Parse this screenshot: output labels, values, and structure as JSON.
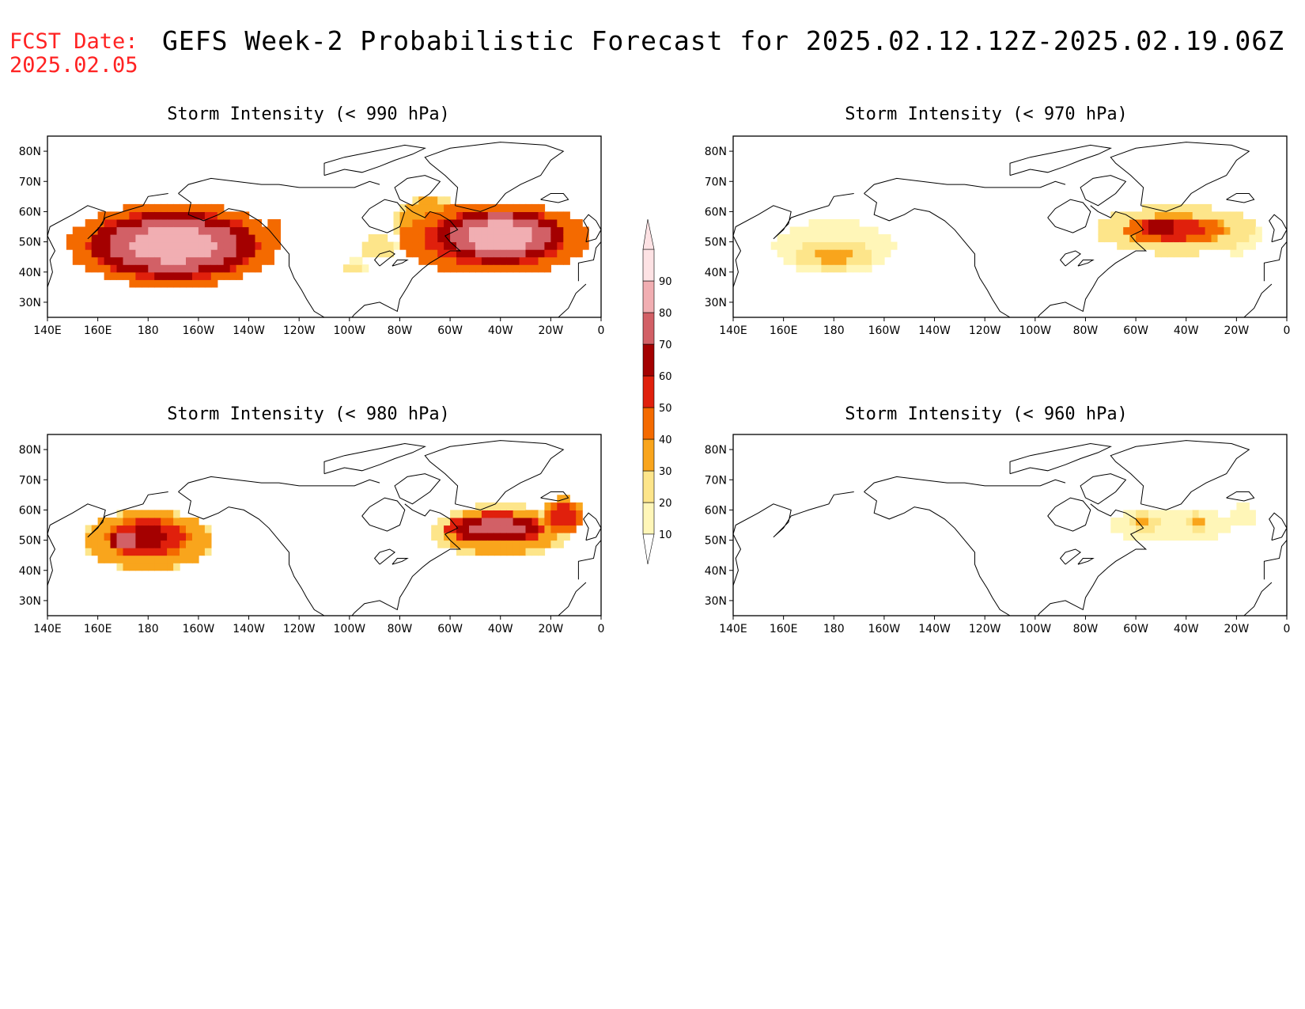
{
  "header": {
    "fcst_label": "FCST Date:",
    "fcst_date": "2025.02.05",
    "title": "GEFS Week-2 Probabilistic Forecast for 2025.02.12.12Z-2025.02.19.06Z"
  },
  "axes": {
    "lon_labels": [
      "140E",
      "160E",
      "180",
      "160W",
      "140W",
      "120W",
      "100W",
      "80W",
      "60W",
      "40W",
      "20W",
      "0"
    ],
    "lat_labels": [
      "80N",
      "70N",
      "60N",
      "50N",
      "40N",
      "30N"
    ],
    "lon_range": [
      140,
      360
    ],
    "lat_range": [
      25,
      85
    ]
  },
  "colorbar": {
    "labels": [
      "10",
      "20",
      "30",
      "40",
      "50",
      "60",
      "70",
      "80",
      "90"
    ],
    "colors": [
      "#fff6b8",
      "#fde58a",
      "#f9a51c",
      "#f46a00",
      "#e0200c",
      "#a40000",
      "#d26066",
      "#f1aeb2",
      "#fde2e4"
    ]
  },
  "chart_data": [
    {
      "type": "heatmap",
      "title": "Storm Intensity (< 990 hPa)",
      "blobs": [
        {
          "lon": 190,
          "lat": 49,
          "rlon": 34,
          "rlat": 11,
          "p": 88
        },
        {
          "lon": 190,
          "lat": 49,
          "rlon": 42,
          "rlat": 14,
          "p": 65
        },
        {
          "lon": 205,
          "lat": 50,
          "rlon": 18,
          "rlat": 9,
          "p": 55
        },
        {
          "lon": 220,
          "lat": 49,
          "rlon": 7,
          "rlat": 6,
          "p": 32
        },
        {
          "lon": 230,
          "lat": 55,
          "rlon": 4,
          "rlat": 3,
          "p": 45
        },
        {
          "lon": 320,
          "lat": 52,
          "rlon": 26,
          "rlat": 9,
          "p": 88
        },
        {
          "lon": 318,
          "lat": 51,
          "rlon": 38,
          "rlat": 12,
          "p": 62
        },
        {
          "lon": 292,
          "lat": 56,
          "rlon": 14,
          "rlat": 9,
          "p": 42
        },
        {
          "lon": 272,
          "lat": 48,
          "rlon": 7,
          "rlat": 4,
          "p": 30
        },
        {
          "lon": 262,
          "lat": 42,
          "rlon": 5,
          "rlat": 2,
          "p": 25
        }
      ]
    },
    {
      "type": "heatmap",
      "title": "Storm Intensity (< 970 hPa)",
      "blobs": [
        {
          "lon": 180,
          "lat": 48,
          "rlon": 24,
          "rlat": 9,
          "p": 18
        },
        {
          "lon": 180,
          "lat": 46,
          "rlon": 16,
          "rlat": 5,
          "p": 33
        },
        {
          "lon": 316,
          "lat": 54,
          "rlon": 32,
          "rlat": 8,
          "p": 35
        },
        {
          "lon": 315,
          "lat": 54,
          "rlon": 20,
          "rlat": 5,
          "p": 58
        },
        {
          "lon": 310,
          "lat": 55,
          "rlon": 10,
          "rlat": 3,
          "p": 68
        },
        {
          "lon": 340,
          "lat": 52,
          "rlon": 10,
          "rlat": 6,
          "p": 22
        }
      ]
    },
    {
      "type": "heatmap",
      "title": "Storm Intensity (< 980 hPa)",
      "blobs": [
        {
          "lon": 180,
          "lat": 50,
          "rlon": 26,
          "rlat": 10,
          "p": 45
        },
        {
          "lon": 180,
          "lat": 51,
          "rlon": 17,
          "rlat": 7,
          "p": 65
        },
        {
          "lon": 172,
          "lat": 50,
          "rlon": 8,
          "rlat": 4,
          "p": 78
        },
        {
          "lon": 320,
          "lat": 53,
          "rlon": 27,
          "rlat": 9,
          "p": 40
        },
        {
          "lon": 318,
          "lat": 54,
          "rlon": 20,
          "rlat": 5,
          "p": 78
        },
        {
          "lon": 345,
          "lat": 58,
          "rlon": 8,
          "rlat": 6,
          "p": 58
        }
      ]
    },
    {
      "type": "heatmap",
      "title": "Storm Intensity (< 960 hPa)",
      "blobs": [
        {
          "lon": 314,
          "lat": 55,
          "rlon": 25,
          "rlat": 6,
          "p": 18
        },
        {
          "lon": 303,
          "lat": 56,
          "rlon": 6,
          "rlat": 3,
          "p": 33
        },
        {
          "lon": 324,
          "lat": 56,
          "rlon": 4,
          "rlat": 3,
          "p": 35
        },
        {
          "lon": 342,
          "lat": 58,
          "rlon": 5,
          "rlat": 4,
          "p": 15
        }
      ]
    }
  ]
}
